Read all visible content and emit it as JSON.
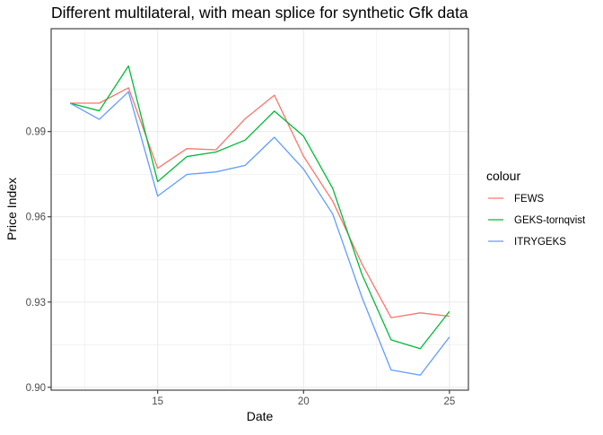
{
  "chart_data": {
    "type": "line",
    "title": "Different multilateral, with mean splice for synthetic Gfk data",
    "xlabel": "Date",
    "ylabel": "Price Index",
    "x": [
      12,
      13,
      14,
      15,
      16,
      17,
      18,
      19,
      20,
      21,
      22,
      23,
      24,
      25
    ],
    "xlim": [
      11.35,
      25.65
    ],
    "ylim": [
      0.899,
      1.0262
    ],
    "x_ticks": [
      15,
      20,
      25
    ],
    "x_tick_labels": [
      "15",
      "20",
      "25"
    ],
    "y_ticks": [
      0.9,
      0.93,
      0.96,
      0.99
    ],
    "y_tick_labels": [
      "0.90",
      "0.93",
      "0.96",
      "0.99"
    ],
    "grid": true,
    "legend_title": "colour",
    "legend_position": "right",
    "series": [
      {
        "name": "FEWS",
        "color": "#F8766D",
        "values": [
          1.0,
          1.0,
          1.0054,
          0.9771,
          0.984,
          0.9836,
          0.9945,
          1.0028,
          0.9813,
          0.9655,
          0.9435,
          0.9245,
          0.9262,
          0.925
        ]
      },
      {
        "name": "GEKS-tornqvist",
        "color": "#00BA38",
        "values": [
          1.0,
          0.9973,
          1.0131,
          0.9724,
          0.9812,
          0.9828,
          0.987,
          0.9972,
          0.9884,
          0.97,
          0.9398,
          0.9167,
          0.9136,
          0.9267
        ]
      },
      {
        "name": "ITRYGEKS",
        "color": "#619CFF",
        "values": [
          1.0,
          0.9943,
          1.004,
          0.9673,
          0.9749,
          0.9758,
          0.9781,
          0.988,
          0.9768,
          0.961,
          0.9317,
          0.9061,
          0.9043,
          0.9177
        ]
      }
    ]
  }
}
